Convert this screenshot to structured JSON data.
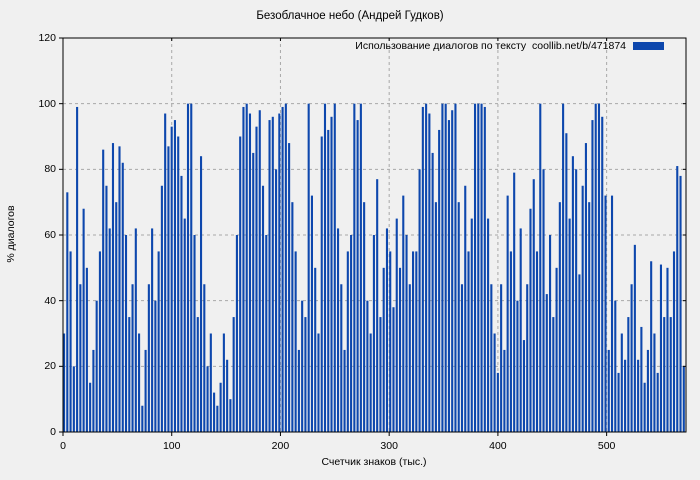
{
  "title": "Безоблачное небо (Андрей Гудков)",
  "legend": {
    "label": "Использование диалогов по тексту  coollib.net/b/471874"
  },
  "colors": {
    "background": "#f0f0f0",
    "bar": "#0d47ad",
    "grid": "#a8a8a8",
    "frame": "#000000",
    "text": "#000000"
  },
  "chart_data": {
    "type": "bar",
    "title": "Безоблачное небо (Андрей Гудков)",
    "series_label": "Использование диалогов по тексту  coollib.net/b/471874",
    "xlabel": "Счетчик знаков (тыс.)",
    "ylabel": "% диалогов",
    "xlim": [
      0,
      573
    ],
    "ylim": [
      0,
      120
    ],
    "x_ticks": [
      0,
      100,
      200,
      300,
      400,
      500
    ],
    "y_ticks": [
      0,
      20,
      40,
      60,
      80,
      100,
      120
    ],
    "grid": true,
    "legend_position": "top-right",
    "x_start": 0,
    "x_step": 3,
    "x_units": "thousand characters",
    "y_units": "% of dialogs",
    "values": [
      30,
      73,
      55,
      20,
      99,
      45,
      68,
      50,
      15,
      25,
      40,
      55,
      86,
      75,
      62,
      88,
      70,
      87,
      82,
      60,
      35,
      45,
      62,
      30,
      8,
      25,
      45,
      62,
      40,
      55,
      75,
      97,
      87,
      93,
      95,
      90,
      78,
      65,
      100,
      100,
      60,
      35,
      84,
      45,
      20,
      30,
      12,
      8,
      15,
      30,
      22,
      10,
      35,
      60,
      90,
      99,
      100,
      97,
      85,
      93,
      98,
      75,
      60,
      95,
      96,
      80,
      97,
      99,
      100,
      88,
      70,
      55,
      25,
      40,
      35,
      100,
      72,
      50,
      30,
      90,
      100,
      92,
      96,
      100,
      62,
      45,
      25,
      55,
      60,
      100,
      95,
      100,
      70,
      40,
      30,
      60,
      77,
      35,
      50,
      62,
      55,
      38,
      65,
      50,
      72,
      60,
      45,
      55,
      55,
      80,
      99,
      100,
      97,
      85,
      70,
      92,
      100,
      100,
      95,
      98,
      100,
      70,
      45,
      75,
      55,
      65,
      100,
      100,
      100,
      99,
      65,
      45,
      30,
      18,
      45,
      25,
      72,
      55,
      79,
      40,
      62,
      28,
      45,
      68,
      77,
      55,
      100,
      80,
      42,
      60,
      35,
      50,
      70,
      100,
      91,
      65,
      84,
      80,
      48,
      75,
      88,
      70,
      95,
      100,
      100,
      96,
      72,
      25,
      72,
      40,
      18,
      30,
      22,
      35,
      45,
      57,
      22,
      32,
      15,
      25,
      52,
      30,
      18,
      51,
      35,
      50,
      35,
      55,
      81,
      78,
      20
    ]
  }
}
